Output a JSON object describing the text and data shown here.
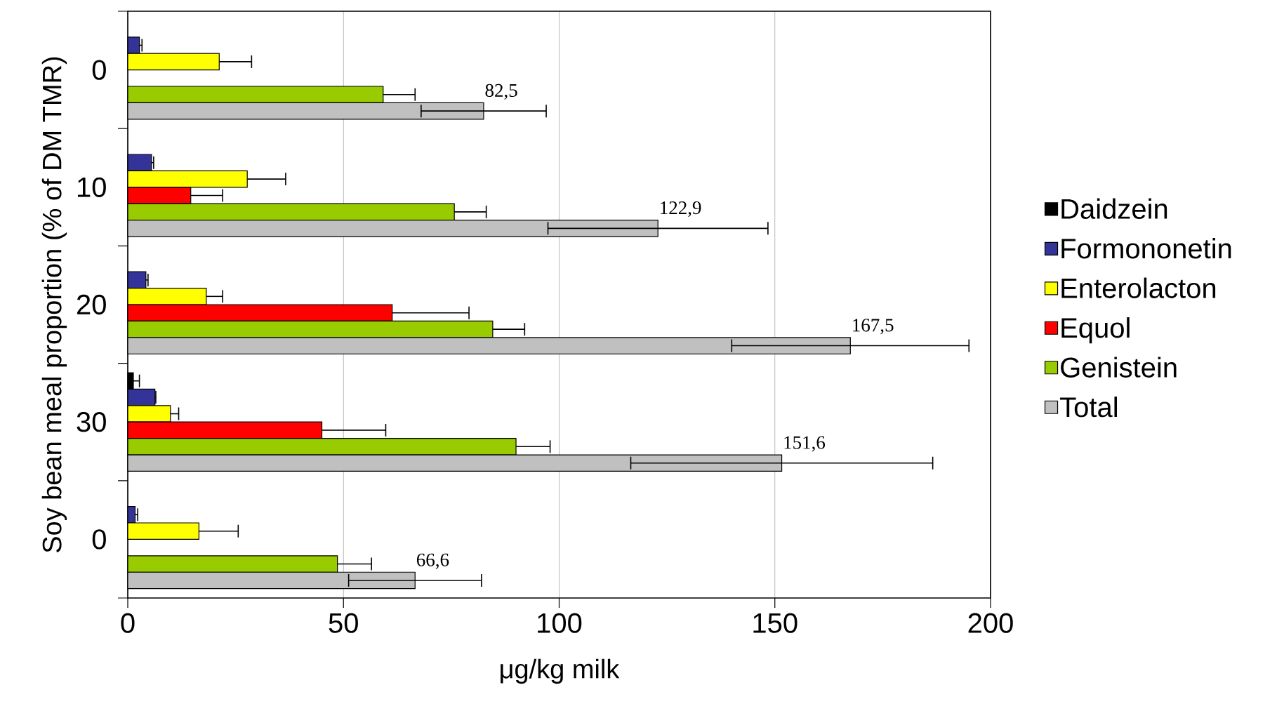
{
  "chart_data": {
    "type": "bar",
    "orientation": "horizontal",
    "categories": [
      "0",
      "10",
      "20",
      "30",
      "0"
    ],
    "xlabel": "μg/kg milk",
    "ylabel": "Soy bean meal proportion (% of DM TMR)",
    "xlim": [
      0,
      200
    ],
    "xticks": [
      0,
      50,
      100,
      150,
      200
    ],
    "grid": "x",
    "legend": "right",
    "series": [
      {
        "name": "Daidzein",
        "color": "#000000",
        "values": [
          null,
          null,
          null,
          1.3,
          null
        ],
        "errors": [
          null,
          null,
          null,
          [
            1.3,
            2.7
          ],
          null
        ]
      },
      {
        "name": "Formononetin",
        "color": "#333399",
        "values": [
          2.7,
          5.5,
          4.2,
          6.3,
          1.7
        ],
        "errors": [
          [
            2.7,
            3.3
          ],
          [
            5.5,
            6
          ],
          [
            4.2,
            4.7
          ],
          [
            6.3,
            6.5
          ],
          [
            1.7,
            2.3
          ]
        ]
      },
      {
        "name": "Enterolacton",
        "color": "#ffff00",
        "values": [
          21.2,
          27.7,
          18.2,
          9.9,
          16.5
        ],
        "errors": [
          [
            21.2,
            28.7
          ],
          [
            27.7,
            36.6
          ],
          [
            18.2,
            22
          ],
          [
            9.9,
            11.8
          ],
          [
            16.5,
            25.6
          ]
        ]
      },
      {
        "name": "Equol",
        "color": "#ff0000",
        "values": [
          null,
          14.6,
          61.3,
          45,
          null
        ],
        "errors": [
          null,
          [
            14.6,
            22
          ],
          [
            61.3,
            79.1
          ],
          [
            45,
            59.8
          ],
          null
        ]
      },
      {
        "name": "Genistein",
        "color": "#99cc00",
        "values": [
          59.2,
          75.7,
          84.6,
          90,
          48.6
        ],
        "errors": [
          [
            59.2,
            66.6
          ],
          [
            75.7,
            83.1
          ],
          [
            84.6,
            92
          ],
          [
            90,
            97.9
          ],
          [
            48.6,
            56.5
          ]
        ]
      },
      {
        "name": "Total",
        "color": "#c0c0c0",
        "values": [
          82.5,
          122.9,
          167.5,
          151.6,
          66.6
        ],
        "errors": [
          14.5,
          25.5,
          27.5,
          35,
          15.4
        ],
        "value_labels": [
          "82,5",
          "122,9",
          "167,5",
          "151,6",
          "66,6"
        ]
      }
    ]
  }
}
